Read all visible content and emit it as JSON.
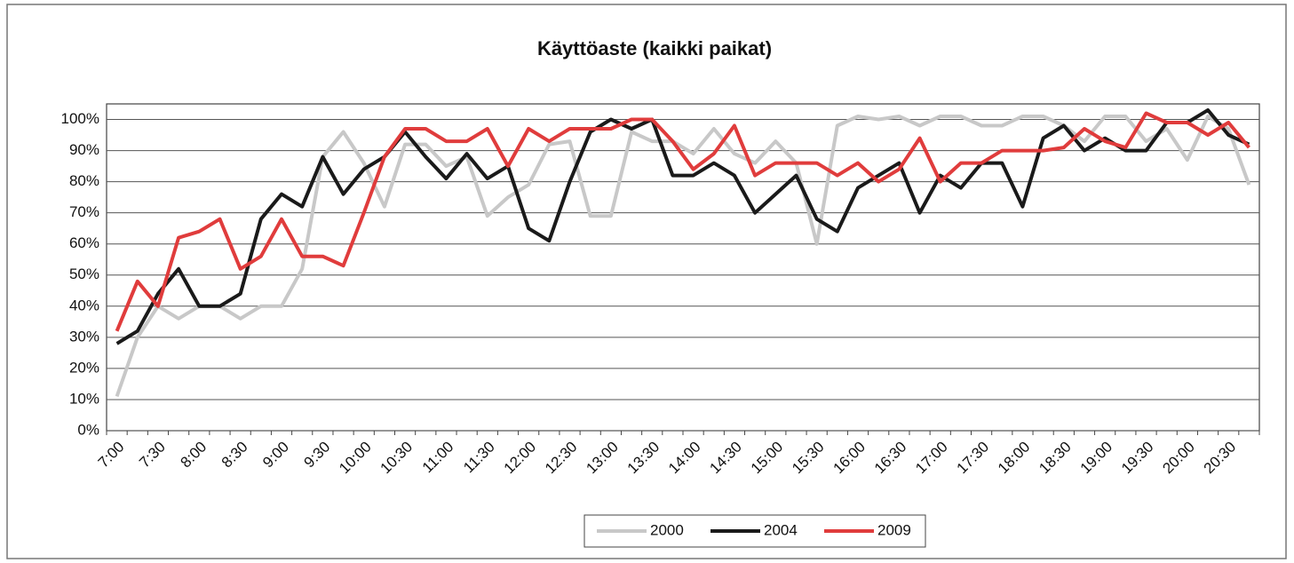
{
  "chart_data": {
    "type": "line",
    "title": "Käyttöaste (kaikki paikat)",
    "categories": [
      "7:00",
      null,
      "7:30",
      null,
      "8:00",
      null,
      "8:30",
      null,
      "9:00",
      null,
      "9:30",
      null,
      "10:00",
      null,
      "10:30",
      null,
      "11:00",
      null,
      "11:30",
      null,
      "12:00",
      null,
      "12:30",
      null,
      "13:00",
      null,
      "13:30",
      null,
      "14:00",
      null,
      "14:30",
      null,
      "15:00",
      null,
      "15:30",
      null,
      "16:00",
      null,
      "16:30",
      null,
      "17:00",
      null,
      "17:30",
      null,
      "18:00",
      null,
      "18:30",
      null,
      "19:00",
      null,
      "19:30",
      null,
      "20:00",
      null,
      "20:30",
      null
    ],
    "series": [
      {
        "name": "2000",
        "color": "#c8c8c8",
        "values": [
          11,
          30,
          40,
          36,
          40,
          40,
          36,
          40,
          40,
          52,
          88,
          96,
          86,
          72,
          92,
          92,
          85,
          88,
          69,
          75,
          79,
          92,
          93,
          69,
          69,
          96,
          93,
          93,
          89,
          97,
          89,
          86,
          93,
          86,
          60,
          98,
          101,
          100,
          101,
          98,
          101,
          101,
          98,
          98,
          101,
          101,
          98,
          93,
          101,
          101,
          93,
          97,
          87,
          101,
          97,
          79
        ]
      },
      {
        "name": "2004",
        "color": "#1a1a1a",
        "values": [
          28,
          32,
          44,
          52,
          40,
          40,
          44,
          68,
          76,
          72,
          88,
          76,
          84,
          88,
          96,
          88,
          81,
          89,
          81,
          85,
          65,
          61,
          80,
          96,
          100,
          97,
          100,
          82,
          82,
          86,
          82,
          70,
          76,
          82,
          68,
          64,
          78,
          82,
          86,
          70,
          82,
          78,
          86,
          86,
          72,
          94,
          98,
          90,
          94,
          90,
          90,
          99,
          99,
          103,
          95,
          92
        ]
      },
      {
        "name": "2009",
        "color": "#e03c3c",
        "values": [
          32,
          48,
          40,
          62,
          64,
          68,
          52,
          56,
          68,
          56,
          56,
          53,
          70,
          88,
          97,
          97,
          93,
          93,
          97,
          85,
          97,
          93,
          97,
          97,
          97,
          100,
          100,
          93,
          84,
          89,
          98,
          82,
          86,
          86,
          86,
          82,
          86,
          80,
          84,
          94,
          80,
          86,
          86,
          90,
          90,
          90,
          91,
          97,
          93,
          91,
          102,
          99,
          99,
          95,
          99,
          91
        ]
      }
    ],
    "ylim": [
      0,
      105
    ],
    "yticks": [
      {
        "value": 0,
        "label": "0%"
      },
      {
        "value": 10,
        "label": "10%"
      },
      {
        "value": 20,
        "label": "20%"
      },
      {
        "value": 30,
        "label": "30%"
      },
      {
        "value": 40,
        "label": "40%"
      },
      {
        "value": 50,
        "label": "50%"
      },
      {
        "value": 60,
        "label": "60%"
      },
      {
        "value": 70,
        "label": "70%"
      },
      {
        "value": 80,
        "label": "80%"
      },
      {
        "value": 90,
        "label": "90%"
      },
      {
        "value": 100,
        "label": "100%"
      }
    ],
    "grid": true,
    "legend": "bottom"
  }
}
